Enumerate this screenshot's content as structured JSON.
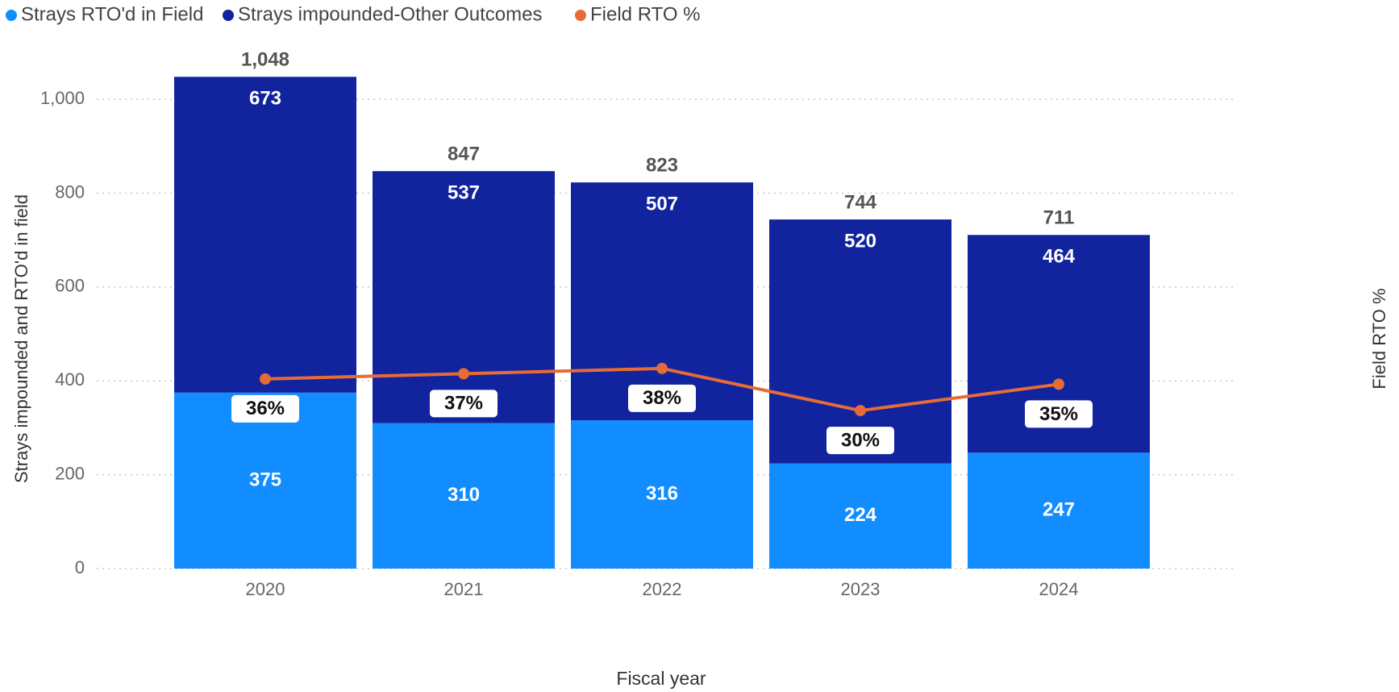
{
  "chart_data": {
    "type": "bar",
    "stacked": true,
    "categories": [
      "2020",
      "2021",
      "2022",
      "2023",
      "2024"
    ],
    "series": [
      {
        "name": "Strays RTO'd in Field",
        "color": "#118dff",
        "values": [
          375,
          310,
          316,
          224,
          247
        ]
      },
      {
        "name": "Strays impounded-Other Outcomes",
        "color": "#12239e",
        "values": [
          673,
          537,
          507,
          520,
          464
        ]
      },
      {
        "name": "Field RTO %",
        "type": "line",
        "axis": "y2",
        "color": "#e66c37",
        "values": [
          36,
          37,
          38,
          30,
          35
        ],
        "value_labels": [
          "36%",
          "37%",
          "38%",
          "30%",
          "35%"
        ]
      }
    ],
    "totals": {
      "values": [
        1048,
        847,
        823,
        744,
        711
      ],
      "value_labels": [
        "1,048",
        "847",
        "823",
        "744",
        "711"
      ]
    },
    "x_label": "Fiscal year",
    "y_label": "Strays impounded and RTO'd in field",
    "y2_label": "Field RTO %",
    "ylim": [
      0,
      1100
    ],
    "yticks": [
      0,
      200,
      400,
      600,
      800,
      {
        "value": 1000,
        "label": "1,000"
      }
    ],
    "y2lim": [
      0,
      98
    ],
    "grid": true,
    "legend": "top-left"
  }
}
